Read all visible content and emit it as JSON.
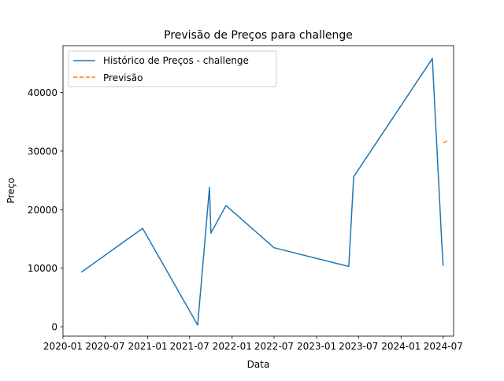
{
  "chart_data": {
    "type": "line",
    "title": "Previsão de Preços para challenge",
    "xlabel": "Data",
    "ylabel": "Preço",
    "x_axis_type": "date",
    "xlim": [
      "2020-01-01",
      "2024-08-15"
    ],
    "ylim": [
      -1600,
      48000
    ],
    "x_tick_labels": [
      "2020-01",
      "2020-07",
      "2021-01",
      "2021-07",
      "2022-01",
      "2022-07",
      "2023-01",
      "2023-07",
      "2024-01",
      "2024-07"
    ],
    "x_tick_values": [
      "2020-01-01",
      "2020-07-01",
      "2021-01-01",
      "2021-07-01",
      "2022-01-01",
      "2022-07-01",
      "2023-01-01",
      "2023-07-01",
      "2024-01-01",
      "2024-07-01"
    ],
    "y_ticks": [
      0,
      10000,
      20000,
      30000,
      40000
    ],
    "y_tick_labels": [
      "0",
      "10000",
      "20000",
      "30000",
      "40000"
    ],
    "grid": false,
    "legend_position": "upper-left",
    "series": [
      {
        "name": "Histórico de Preços - challenge",
        "color": "#1f77b4",
        "style": "solid",
        "points": [
          {
            "x": "2020-03-20",
            "y": 9300
          },
          {
            "x": "2020-12-10",
            "y": 16800
          },
          {
            "x": "2021-08-05",
            "y": 300
          },
          {
            "x": "2021-09-25",
            "y": 23800
          },
          {
            "x": "2021-10-01",
            "y": 16000
          },
          {
            "x": "2021-12-05",
            "y": 20700
          },
          {
            "x": "2022-07-01",
            "y": 13500
          },
          {
            "x": "2023-05-20",
            "y": 10300
          },
          {
            "x": "2023-06-10",
            "y": 25600
          },
          {
            "x": "2024-05-15",
            "y": 45800
          },
          {
            "x": "2024-06-25",
            "y": 14300
          },
          {
            "x": "2024-07-01",
            "y": 10400
          }
        ]
      },
      {
        "name": "Previsão",
        "color": "#ff7f0e",
        "style": "dashed",
        "points": [
          {
            "x": "2024-07-01",
            "y": 31400
          },
          {
            "x": "2024-07-25",
            "y": 31900
          }
        ]
      }
    ]
  }
}
